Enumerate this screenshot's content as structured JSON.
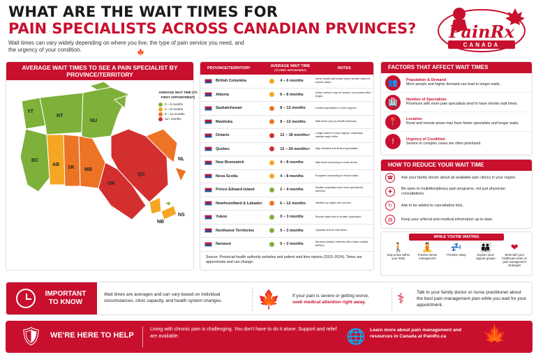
{
  "header": {
    "title1": "WHAT ARE THE WAIT TIMES FOR",
    "title2": "PAIN SPECIALISTS ACROSS CANADIAN PRVINCES?",
    "subtitle": "Wait times can vary widely depending on where you live, the type of pain service you need, and the urgency of your condition."
  },
  "logo": {
    "name": "PainRx",
    "tag": "CANADA"
  },
  "map": {
    "title": "AVERAGE WAIT TIMES TO SEE A PAIN SPECIALIST BY PROVINCE/TERRITORY",
    "legend_title": "AVERAGE WAIT TIME (TO FIRST APPOINTMENT)",
    "legend": [
      {
        "label": "0 – 6 months",
        "color": "#7fb03a"
      },
      {
        "label": "4 – 8 months",
        "color": "#f5a623"
      },
      {
        "label": "8 – 12 months",
        "color": "#ec7424"
      },
      {
        "label": "12+ months",
        "color": "#d32f2f"
      }
    ],
    "labels": [
      "YT",
      "NT",
      "NU",
      "BC",
      "AB",
      "SK",
      "MB",
      "ON",
      "QC",
      "NL",
      "NB",
      "NS"
    ]
  },
  "table": {
    "h1": "PROVINCE/TERRITORY",
    "h2": "AVERAGE WAIT TIME",
    "h2sub": "(TO FIRST APPOINTMENT)",
    "h3": "NOTES",
    "rows": [
      {
        "p": "British Columbia",
        "w": "4 – 6 months",
        "n": "Some health authorities report shorter waits for routine cases.",
        "c": "#f5a623"
      },
      {
        "p": "Alberta",
        "w": "6 – 8 months",
        "n": "Urban centres may be shorter; rural areas often longer.",
        "c": "#f5a623"
      },
      {
        "p": "Saskatchewan",
        "w": "8 – 12 months",
        "n": "Limited specialists in some regions.",
        "c": "#ec7424"
      },
      {
        "p": "Manitoba",
        "w": "8 – 12 months",
        "n": "Wait times vary by Health Authority.",
        "c": "#ec7424"
      },
      {
        "p": "Ontario",
        "w": "12 – 18 months+",
        "n": "Longer waits in many regions, especially outside major cities.",
        "c": "#d32f2f"
      },
      {
        "p": "Quebec",
        "w": "12 – 24 months+",
        "n": "High demand and limited specialists.",
        "c": "#d32f2f"
      },
      {
        "p": "New Brunswick",
        "w": "4 – 8 months",
        "n": "Wait times improving in some areas.",
        "c": "#f5a623"
      },
      {
        "p": "Nova Scotia",
        "w": "4 – 8 months",
        "n": "Programs expanding to reduce waits.",
        "c": "#f5a623"
      },
      {
        "p": "Prince Edward Island",
        "w": "2 – 4 months",
        "n": "Smaller population and more specialized services.",
        "c": "#7fb03a"
      },
      {
        "p": "Newfoundland & Labador",
        "w": "6 – 12 months",
        "n": "Variable by region and service.",
        "c": "#ec7424"
      },
      {
        "p": "Yukon",
        "w": "0 – 3 months",
        "n": "Shorter waits due to smaller population.",
        "c": "#7fb03a"
      },
      {
        "p": "Northwest Territories",
        "w": "0 – 3 months",
        "n": "Typically shorter wait times.",
        "c": "#7fb03a"
      },
      {
        "p": "Nunavut",
        "w": "0 – 3 months",
        "n": "Services limited; referrals often made outside territory.",
        "c": "#7fb03a"
      }
    ],
    "source": "Source: Provincial health authority websites and patient wait time reports (2023–2024). Times are approximate and can change."
  },
  "factors": {
    "title": "FACTORS THAT AFFECT WAIT TIMES",
    "items": [
      {
        "t": "Population & Demand",
        "d": "More people and higher demand can lead to longer waits.",
        "icon": "people-icon"
      },
      {
        "t": "Number of Specialists",
        "d": "Provinces with more pain specialists tend to have shorter wait times.",
        "icon": "hospital-icon"
      },
      {
        "t": "Location",
        "d": "Rural and remote areas may have fewer specialists and longer waits.",
        "icon": "location-icon"
      },
      {
        "t": "Urgency of Condition",
        "d": "Severe or complex cases are often prioritized.",
        "icon": "alert-icon"
      }
    ]
  },
  "reduce": {
    "title": "HOW TO REDUCE YOUR WAIT TIME",
    "items": [
      "Ask your family doctor about all available pain clinics in your region.",
      "Be open to multidisciplinary pain programs, not just physician consultations.",
      "Ask to be added to cancellation lists.",
      "Keep your referral and medical information up to date."
    ]
  },
  "waiting": {
    "title": "WHILE YOU'RE WAITING",
    "items": [
      "Stay active within your limits",
      "Practise stress management",
      "Prioritize sleep",
      "Explore local support groups",
      "Work with your healthcare team on pain management strategies"
    ]
  },
  "important": {
    "title": "IMPORTANT TO KNOW",
    "text": "Wait times are averages and can vary based on individual circumstances, clinic capacity, and health system changes.",
    "severe": "If your pain is severe or getting worse,",
    "severe_link": "seek medical attention right away.",
    "talk": "Talk to your family doctor or nurse practitioner about the best pain management plan while you wait for your appointment."
  },
  "help": {
    "title": "WE'RE HERE TO HELP",
    "text": "Living with chronic pain is challenging. You don't have to do it alone. Support and relief are available.",
    "link": "Learn more about pain management and resources in Canada at PainRx.ca"
  }
}
